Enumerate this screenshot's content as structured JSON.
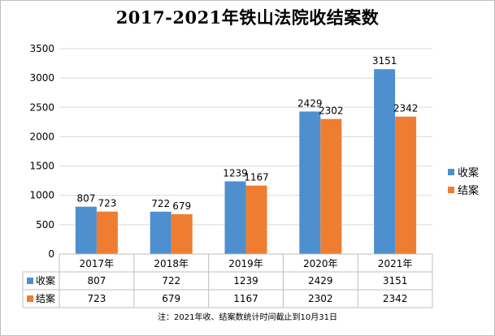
{
  "chart_data": {
    "type": "bar",
    "title": "2017-2021年铁山法院收结案数",
    "categories": [
      "2017年",
      "2018年",
      "2019年",
      "2020年",
      "2021年"
    ],
    "series": [
      {
        "name": "收案",
        "color": "#4e8fd0",
        "values": [
          807,
          722,
          1239,
          2429,
          3151
        ]
      },
      {
        "name": "结案",
        "color": "#ee7d31",
        "values": [
          723,
          679,
          1167,
          2302,
          2342
        ]
      }
    ],
    "ylim": [
      0,
      3500
    ],
    "yticks": [
      0,
      500,
      1000,
      1500,
      2000,
      2500,
      3000,
      3500
    ],
    "grid": true,
    "legend": "right",
    "data_table": true,
    "note": "注：2021年收、结案数统计时间截止到10月31日"
  }
}
